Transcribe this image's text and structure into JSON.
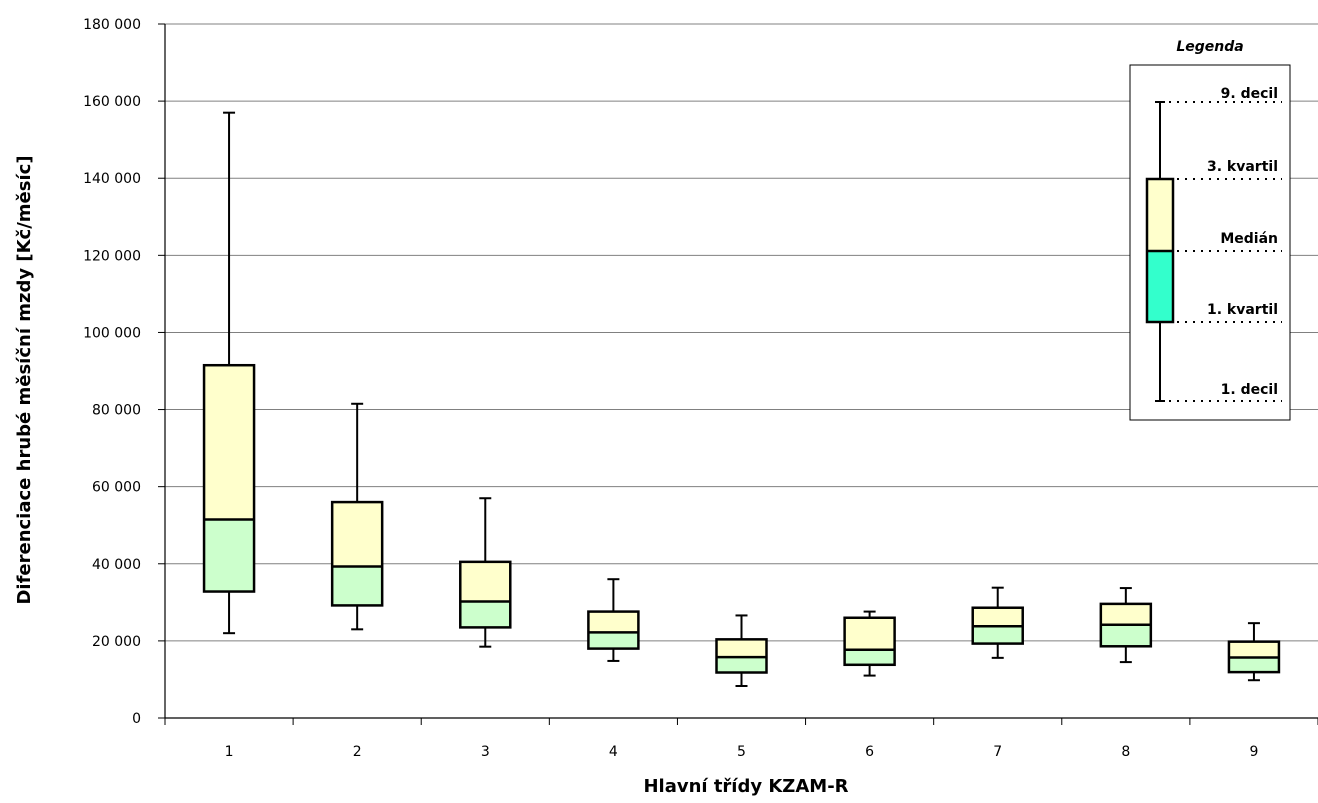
{
  "chart_data": {
    "type": "box",
    "xlabel": "Hlavní třídy KZAM-R",
    "ylabel": "Diferenciace hrubé měsíční mzdy [Kč/měsíc]",
    "ylim": [
      0,
      180000
    ],
    "y_ticks": [
      "0",
      "20 000",
      "40 000",
      "60 000",
      "80 000",
      "100 000",
      "120 000",
      "140 000",
      "160 000",
      "180 000"
    ],
    "categories": [
      "1",
      "2",
      "3",
      "4",
      "5",
      "6",
      "7",
      "8",
      "9"
    ],
    "series": [
      {
        "decile1": 22000,
        "quartile1": 32800,
        "median": 51500,
        "quartile3": 91500,
        "decile9": 157000
      },
      {
        "decile1": 23000,
        "quartile1": 29200,
        "median": 39300,
        "quartile3": 56000,
        "decile9": 81500
      },
      {
        "decile1": 18500,
        "quartile1": 23500,
        "median": 30200,
        "quartile3": 40500,
        "decile9": 57000
      },
      {
        "decile1": 14800,
        "quartile1": 18000,
        "median": 22200,
        "quartile3": 27600,
        "decile9": 36000
      },
      {
        "decile1": 8300,
        "quartile1": 11800,
        "median": 15800,
        "quartile3": 20400,
        "decile9": 26600
      },
      {
        "decile1": 11000,
        "quartile1": 13800,
        "median": 17700,
        "quartile3": 26000,
        "decile9": 27600
      },
      {
        "decile1": 15600,
        "quartile1": 19300,
        "median": 23800,
        "quartile3": 28600,
        "decile9": 33800
      },
      {
        "decile1": 14500,
        "quartile1": 18600,
        "median": 24200,
        "quartile3": 29600,
        "decile9": 33700
      },
      {
        "decile1": 9800,
        "quartile1": 11900,
        "median": 15700,
        "quartile3": 19800,
        "decile9": 24600
      }
    ],
    "grid": true,
    "colors": {
      "upper_box": "#ffffcc",
      "lower_box": "#ccffcc",
      "legend_lower": "#33ffcc",
      "lines": "#000000"
    },
    "legend": {
      "title": "Legenda",
      "position": "top-right",
      "labels": {
        "decile9": "9. decil",
        "quartile3": "3. kvartil",
        "median": "Medián",
        "quartile1": "1. kvartil",
        "decile1": "1. decil"
      }
    }
  }
}
